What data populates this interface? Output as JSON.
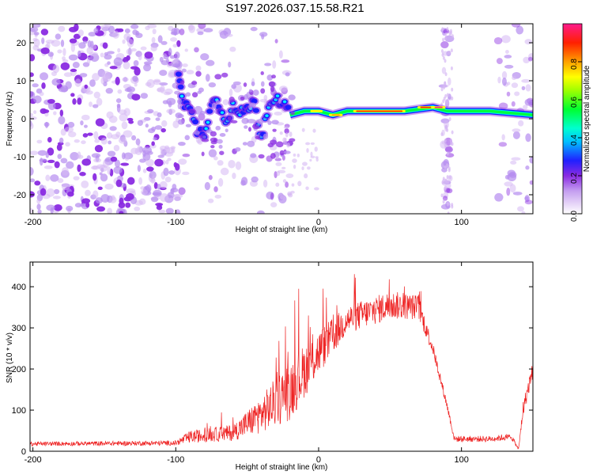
{
  "title": "S197.2026.037.15.58.R21",
  "chart_data": [
    {
      "type": "heatmap",
      "name": "spectrogram",
      "xlabel": "Height of straight line (km)",
      "ylabel": "Frequency (Hz)",
      "xlim": [
        -202,
        150
      ],
      "ylim": [
        -25,
        25
      ],
      "xticks": [
        -200,
        -100,
        0,
        100
      ],
      "yticks": [
        -20,
        -10,
        0,
        10,
        20
      ],
      "colorbar": {
        "label": "Normalized spectral amplitude",
        "range": [
          0,
          1
        ],
        "ticks": [
          0,
          0.2,
          0.4,
          0.6,
          0.8
        ],
        "colors": [
          "#ffffff",
          "#d6b8f4",
          "#8a2be2",
          "#1818ff",
          "#00e8ff",
          "#00ff40",
          "#ffff00",
          "#ff8000",
          "#ff0000",
          "#ff1a8c"
        ]
      },
      "carrier_trace": [
        {
          "x": -98,
          "y": 13
        },
        {
          "x": -95,
          "y": 5
        },
        {
          "x": -90,
          "y": 2
        },
        {
          "x": -85,
          "y": -3
        },
        {
          "x": -80,
          "y": -4
        },
        {
          "x": -75,
          "y": 5
        },
        {
          "x": -70,
          "y": 4
        },
        {
          "x": -65,
          "y": 0
        },
        {
          "x": -60,
          "y": 3
        },
        {
          "x": -55,
          "y": 1
        },
        {
          "x": -50,
          "y": 3
        },
        {
          "x": -45,
          "y": 4
        },
        {
          "x": -40,
          "y": -5
        },
        {
          "x": -35,
          "y": 4
        },
        {
          "x": -30,
          "y": 6
        },
        {
          "x": -25,
          "y": 4
        },
        {
          "x": -20,
          "y": 1
        },
        {
          "x": -10,
          "y": 2
        },
        {
          "x": 0,
          "y": 2
        },
        {
          "x": 10,
          "y": 1
        },
        {
          "x": 20,
          "y": 2
        },
        {
          "x": 40,
          "y": 2
        },
        {
          "x": 60,
          "y": 2
        },
        {
          "x": 80,
          "y": 3
        },
        {
          "x": 90,
          "y": 2
        },
        {
          "x": 120,
          "y": 2
        },
        {
          "x": 150,
          "y": 1
        }
      ]
    },
    {
      "type": "line",
      "name": "snr",
      "xlabel": "Height of straight line (km)",
      "ylabel": "SNR (10 * v/v)",
      "xlim": [
        -202,
        150
      ],
      "ylim": [
        0,
        460
      ],
      "xticks": [
        -200,
        -100,
        0,
        100
      ],
      "yticks": [
        0,
        100,
        200,
        300,
        400
      ],
      "color": "#ee2222",
      "envelope": [
        {
          "x": -202,
          "base": 18,
          "spread": 10
        },
        {
          "x": -100,
          "base": 20,
          "spread": 12
        },
        {
          "x": -90,
          "base": 35,
          "spread": 30
        },
        {
          "x": -60,
          "base": 45,
          "spread": 40
        },
        {
          "x": -40,
          "base": 90,
          "spread": 90
        },
        {
          "x": -20,
          "base": 150,
          "spread": 150
        },
        {
          "x": 0,
          "base": 240,
          "spread": 110
        },
        {
          "x": 20,
          "base": 320,
          "spread": 70
        },
        {
          "x": 50,
          "base": 355,
          "spread": 70
        },
        {
          "x": 70,
          "base": 350,
          "spread": 60
        },
        {
          "x": 80,
          "base": 250,
          "spread": 30
        },
        {
          "x": 90,
          "base": 110,
          "spread": 20
        },
        {
          "x": 95,
          "base": 30,
          "spread": 15
        },
        {
          "x": 120,
          "base": 30,
          "spread": 15
        },
        {
          "x": 135,
          "base": 35,
          "spread": 15
        },
        {
          "x": 140,
          "base": 5,
          "spread": 5
        },
        {
          "x": 143,
          "base": 100,
          "spread": 40
        },
        {
          "x": 150,
          "base": 200,
          "spread": 40
        }
      ]
    }
  ]
}
